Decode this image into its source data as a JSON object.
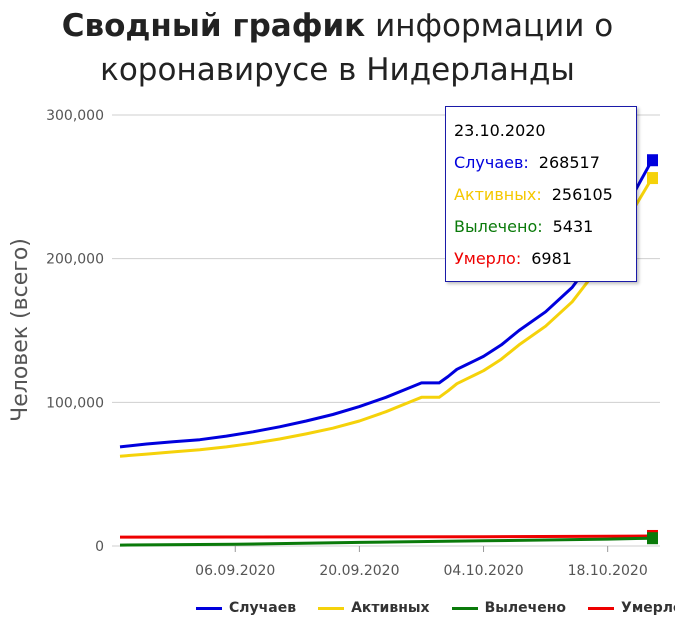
{
  "title": {
    "bold": "Сводный график",
    "rest_line1": "информации о",
    "line2": "коронавирусе в Нидерланды"
  },
  "colors": {
    "cases": "#0000dd",
    "active": "#f5d20a",
    "recovered": "#0a7a0a",
    "deaths": "#ee0000",
    "grid": "#cfcfcf",
    "axis_text": "#555555"
  },
  "tooltip": {
    "date": "23.10.2020",
    "rows": [
      {
        "label": "Случаев:",
        "value": "268517",
        "color": "#0000dd"
      },
      {
        "label": "Активных:",
        "value": "256105",
        "color": "#f5c800"
      },
      {
        "label": "Вылечено:",
        "value": "5431",
        "color": "#0a7a0a"
      },
      {
        "label": "Умерло:",
        "value": "6981",
        "color": "#ee0000"
      }
    ]
  },
  "legend": [
    {
      "label": "Случаев",
      "color": "#0000dd"
    },
    {
      "label": "Активных",
      "color": "#f5d20a"
    },
    {
      "label": "Вылечено",
      "color": "#0a7a0a"
    },
    {
      "label": "Умерло",
      "color": "#ee0000"
    }
  ],
  "chart_data": {
    "type": "line",
    "ylabel": "Человек (всего)",
    "ylim": [
      0,
      300000
    ],
    "yticks": [
      0,
      100000,
      200000,
      300000
    ],
    "ytick_labels": [
      "0",
      "100,000",
      "200,000",
      "300,000"
    ],
    "xticks": [
      "06.09.2020",
      "20.09.2020",
      "04.10.2020",
      "18.10.2020"
    ],
    "xlim": [
      "2020-08-24",
      "2020-10-23"
    ],
    "grid": true,
    "legend_position": "bottom",
    "series": [
      {
        "name": "Случаев",
        "color": "#0000dd",
        "x": [
          "2020-08-24",
          "2020-08-27",
          "2020-08-30",
          "2020-09-02",
          "2020-09-05",
          "2020-09-08",
          "2020-09-11",
          "2020-09-14",
          "2020-09-17",
          "2020-09-20",
          "2020-09-23",
          "2020-09-26",
          "2020-09-27",
          "2020-09-28",
          "2020-09-29",
          "2020-09-30",
          "2020-10-01",
          "2020-10-02",
          "2020-10-03",
          "2020-10-04",
          "2020-10-05",
          "2020-10-06",
          "2020-10-08",
          "2020-10-11",
          "2020-10-14",
          "2020-10-17",
          "2020-10-20",
          "2020-10-23"
        ],
        "y": [
          69000,
          71000,
          72500,
          74000,
          76500,
          79500,
          83000,
          87000,
          91500,
          97000,
          103500,
          111000,
          113500,
          113500,
          113500,
          118000,
          123000,
          126000,
          129000,
          132000,
          136000,
          140000,
          150000,
          163000,
          180000,
          205000,
          235000,
          268517
        ]
      },
      {
        "name": "Активных",
        "color": "#f5d20a",
        "x": [
          "2020-08-24",
          "2020-08-27",
          "2020-08-30",
          "2020-09-02",
          "2020-09-05",
          "2020-09-08",
          "2020-09-11",
          "2020-09-14",
          "2020-09-17",
          "2020-09-20",
          "2020-09-23",
          "2020-09-26",
          "2020-09-27",
          "2020-09-28",
          "2020-09-29",
          "2020-09-30",
          "2020-10-01",
          "2020-10-02",
          "2020-10-03",
          "2020-10-04",
          "2020-10-05",
          "2020-10-06",
          "2020-10-08",
          "2020-10-11",
          "2020-10-14",
          "2020-10-17",
          "2020-10-20",
          "2020-10-23"
        ],
        "y": [
          62500,
          64000,
          65500,
          67000,
          69000,
          71500,
          74500,
          78000,
          82000,
          87000,
          93500,
          101000,
          103500,
          103500,
          103500,
          108000,
          113000,
          116000,
          119000,
          122000,
          126000,
          130000,
          140000,
          153000,
          170000,
          194000,
          225000,
          256105
        ]
      },
      {
        "name": "Вылечено",
        "color": "#0a7a0a",
        "x": [
          "2020-08-24",
          "2020-09-06",
          "2020-09-20",
          "2020-10-04",
          "2020-10-18",
          "2020-10-23"
        ],
        "y": [
          600,
          1200,
          2500,
          3600,
          4800,
          5431
        ]
      },
      {
        "name": "Умерло",
        "color": "#ee0000",
        "x": [
          "2020-08-24",
          "2020-09-06",
          "2020-09-20",
          "2020-10-04",
          "2020-10-18",
          "2020-10-23"
        ],
        "y": [
          6200,
          6250,
          6300,
          6450,
          6750,
          6981
        ]
      }
    ]
  }
}
